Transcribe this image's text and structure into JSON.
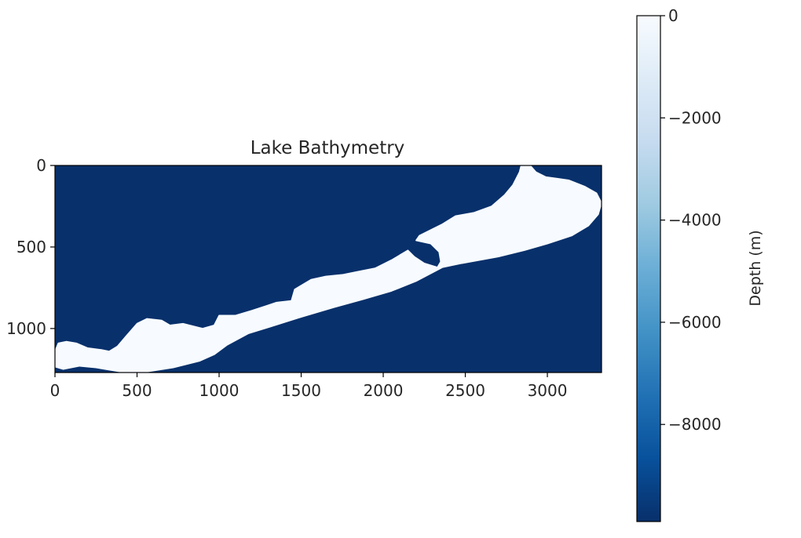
{
  "chart_data": {
    "type": "heatmap",
    "title": "Lake Bathymetry",
    "x_ticks": [
      0,
      500,
      1000,
      1500,
      2000,
      2500,
      3000
    ],
    "y_ticks": [
      0,
      500,
      1000
    ],
    "x_range": [
      0,
      3330
    ],
    "y_range": [
      0,
      1270
    ],
    "y_inverted": true,
    "colormap": "Blues_r",
    "background_color": "#08306b",
    "lake_color": "#f7fbff",
    "colorbar": {
      "label": "Depth (m)",
      "ticks": [
        0,
        -2000,
        -4000,
        -6000,
        -8000
      ],
      "range": [
        -9900,
        0
      ],
      "colors": [
        "#08306b",
        "#08519c",
        "#2171b5",
        "#4292c6",
        "#6baed6",
        "#9ecae1",
        "#c6dbef",
        "#deebf7",
        "#f7fbff"
      ]
    },
    "lake_outline": [
      [
        2840,
        0
      ],
      [
        2900,
        5
      ],
      [
        2930,
        40
      ],
      [
        2990,
        70
      ],
      [
        3060,
        80
      ],
      [
        3130,
        90
      ],
      [
        3230,
        130
      ],
      [
        3300,
        170
      ],
      [
        3330,
        230
      ],
      [
        3310,
        300
      ],
      [
        3250,
        370
      ],
      [
        3150,
        430
      ],
      [
        3000,
        480
      ],
      [
        2860,
        520
      ],
      [
        2700,
        560
      ],
      [
        2480,
        600
      ],
      [
        2360,
        625
      ],
      [
        2200,
        710
      ],
      [
        2050,
        770
      ],
      [
        1880,
        820
      ],
      [
        1700,
        870
      ],
      [
        1500,
        930
      ],
      [
        1310,
        990
      ],
      [
        1180,
        1030
      ],
      [
        1050,
        1100
      ],
      [
        970,
        1160
      ],
      [
        880,
        1200
      ],
      [
        720,
        1240
      ],
      [
        560,
        1265
      ],
      [
        400,
        1265
      ],
      [
        250,
        1240
      ],
      [
        150,
        1230
      ],
      [
        50,
        1250
      ],
      [
        0,
        1235
      ],
      [
        0,
        1140
      ],
      [
        20,
        1090
      ],
      [
        70,
        1080
      ],
      [
        130,
        1090
      ],
      [
        200,
        1120
      ],
      [
        280,
        1130
      ],
      [
        330,
        1140
      ],
      [
        380,
        1110
      ],
      [
        430,
        1050
      ],
      [
        500,
        970
      ],
      [
        560,
        940
      ],
      [
        650,
        950
      ],
      [
        700,
        980
      ],
      [
        780,
        970
      ],
      [
        900,
        1000
      ],
      [
        970,
        980
      ],
      [
        1000,
        920
      ],
      [
        1100,
        920
      ],
      [
        1200,
        890
      ],
      [
        1290,
        860
      ],
      [
        1350,
        840
      ],
      [
        1440,
        830
      ],
      [
        1460,
        760
      ],
      [
        1560,
        700
      ],
      [
        1650,
        680
      ],
      [
        1750,
        670
      ],
      [
        1850,
        650
      ],
      [
        1950,
        630
      ],
      [
        2050,
        580
      ],
      [
        2150,
        520
      ],
      [
        2190,
        560
      ],
      [
        2250,
        600
      ],
      [
        2330,
        625
      ],
      [
        2350,
        590
      ],
      [
        2340,
        530
      ],
      [
        2290,
        480
      ],
      [
        2200,
        460
      ],
      [
        2220,
        430
      ],
      [
        2300,
        390
      ],
      [
        2360,
        360
      ],
      [
        2440,
        310
      ],
      [
        2550,
        290
      ],
      [
        2660,
        250
      ],
      [
        2740,
        180
      ],
      [
        2790,
        120
      ],
      [
        2830,
        40
      ]
    ]
  }
}
